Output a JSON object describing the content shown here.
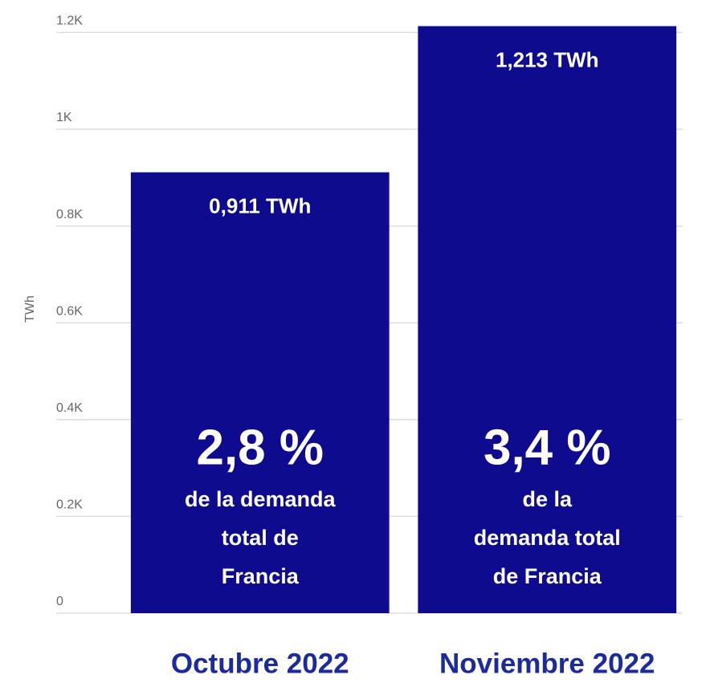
{
  "chart_data": {
    "type": "bar",
    "y_label": "TWh",
    "categories": [
      "Octubre 2022",
      "Noviembre 2022"
    ],
    "values": [
      911,
      1213
    ],
    "value_labels": [
      "0,911 TWh",
      "1,213 TWh"
    ],
    "color": "#0e0b8f",
    "category_color": "#1b2a9c",
    "ylim": [
      0,
      1220
    ],
    "yticks": [
      0,
      {
        "value": 200,
        "label": "0.2K"
      },
      {
        "value": 400,
        "label": "0.4K"
      },
      {
        "value": 600,
        "label": "0.6K"
      },
      {
        "value": 800,
        "label": "0.8K"
      },
      {
        "value": 1000,
        "label": "1K"
      },
      {
        "value": 1200,
        "label": "1.2K"
      }
    ],
    "grid": true,
    "annotations": [
      {
        "text": "2,8 %",
        "lines": [
          "de la demanda",
          "total de",
          "Francia"
        ]
      },
      {
        "text": "3,4 %",
        "lines": [
          "de la",
          "demanda total",
          "de Francia"
        ]
      }
    ]
  }
}
